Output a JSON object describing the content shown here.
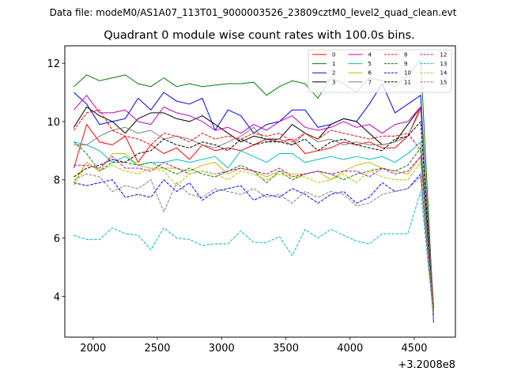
{
  "suptitle": "Data file: modeM0/AS1A07_113T01_9000003526_23809cztM0_level2_quad_clean.evt",
  "chart_data": {
    "type": "line",
    "title": "Quadrant 0 module wise count rates with 100.0s bins.",
    "xlabel": "",
    "ylabel": "",
    "offset_text": "+3.2008e8",
    "xlim": [
      1780,
      4820
    ],
    "ylim": [
      2.6,
      12.6
    ],
    "xticks": [
      2000,
      2500,
      3000,
      3500,
      4000,
      4500
    ],
    "yticks": [
      4,
      6,
      8,
      10,
      12
    ],
    "legend_loc": "upper right",
    "legend_ncol": 4,
    "x": [
      1850,
      1950,
      2050,
      2150,
      2250,
      2350,
      2450,
      2550,
      2650,
      2750,
      2850,
      2950,
      3050,
      3150,
      3250,
      3350,
      3450,
      3550,
      3650,
      3750,
      3850,
      3950,
      4050,
      4150,
      4250,
      4350,
      4450,
      4550,
      4650
    ],
    "series": [
      {
        "name": "0",
        "color": "#ff0000",
        "dash": "solid",
        "values": [
          8.4,
          9.9,
          9.3,
          9.2,
          9.5,
          8.6,
          9.2,
          8.9,
          9.1,
          8.7,
          9.2,
          9.0,
          9.1,
          9.0,
          9.2,
          9.4,
          9.3,
          9.4,
          8.9,
          9.0,
          9.1,
          9.3,
          9.2,
          9.3,
          9.1,
          9.1,
          9.5,
          10.5,
          3.5
        ]
      },
      {
        "name": "1",
        "color": "#008000",
        "dash": "solid",
        "values": [
          11.2,
          11.6,
          11.4,
          11.5,
          11.6,
          11.3,
          11.2,
          11.5,
          11.2,
          11.3,
          11.2,
          11.25,
          11.3,
          11.3,
          11.35,
          10.9,
          11.2,
          11.4,
          11.3,
          10.8,
          11.5,
          11.3,
          11.0,
          11.5,
          11.4,
          11.2,
          11.6,
          12.1,
          3.4
        ]
      },
      {
        "name": "2",
        "color": "#0000ff",
        "dash": "solid",
        "values": [
          11.0,
          10.6,
          9.9,
          10.0,
          10.1,
          10.8,
          10.4,
          11.0,
          10.7,
          10.6,
          10.8,
          9.7,
          10.4,
          10.2,
          9.6,
          9.9,
          10.0,
          10.4,
          10.4,
          9.8,
          9.9,
          10.1,
          10.0,
          10.6,
          11.3,
          10.3,
          10.6,
          10.9,
          3.1
        ]
      },
      {
        "name": "3",
        "color": "#000000",
        "dash": "solid",
        "values": [
          9.8,
          10.5,
          10.2,
          10.0,
          9.6,
          10.1,
          10.3,
          10.3,
          10.1,
          10.0,
          10.2,
          9.9,
          9.6,
          9.3,
          9.5,
          9.4,
          9.4,
          9.9,
          9.6,
          9.4,
          9.9,
          10.1,
          10.0,
          9.6,
          9.2,
          9.3,
          9.9,
          10.5,
          3.6
        ]
      },
      {
        "name": "4",
        "color": "#bf00bf",
        "dash": "solid",
        "values": [
          10.4,
          10.9,
          10.3,
          10.3,
          10.4,
          10.0,
          9.9,
          10.5,
          10.3,
          10.2,
          10.0,
          9.7,
          9.8,
          9.6,
          9.9,
          9.7,
          10.0,
          10.2,
          9.8,
          9.7,
          9.8,
          10.0,
          9.8,
          9.9,
          9.6,
          9.9,
          10.0,
          10.5,
          3.7
        ]
      },
      {
        "name": "5",
        "color": "#00bfbf",
        "dash": "solid",
        "values": [
          9.3,
          9.2,
          9.0,
          8.6,
          8.8,
          8.5,
          8.6,
          8.6,
          8.7,
          8.6,
          8.7,
          8.8,
          8.4,
          9.0,
          8.8,
          8.6,
          8.9,
          8.9,
          8.6,
          8.7,
          8.8,
          8.7,
          8.8,
          8.7,
          8.8,
          8.6,
          8.9,
          9.3,
          3.5
        ]
      },
      {
        "name": "6",
        "color": "#bfbf00",
        "dash": "solid",
        "values": [
          7.9,
          8.6,
          8.3,
          8.9,
          8.9,
          8.5,
          8.4,
          8.4,
          8.4,
          8.3,
          8.5,
          8.6,
          8.2,
          8.4,
          8.3,
          8.1,
          8.3,
          8.2,
          8.2,
          8.3,
          8.0,
          8.3,
          8.5,
          8.6,
          8.4,
          8.3,
          8.2,
          8.8,
          3.4
        ]
      },
      {
        "name": "7",
        "color": "#808080",
        "dash": "solid",
        "values": [
          9.2,
          9.2,
          9.5,
          9.7,
          9.8,
          9.6,
          9.7,
          9.4,
          9.5,
          9.4,
          9.2,
          9.1,
          9.3,
          9.5,
          9.8,
          9.3,
          9.4,
          9.2,
          9.6,
          9.3,
          9.4,
          9.2,
          9.3,
          9.2,
          9.2,
          9.3,
          9.5,
          10.4,
          3.6
        ]
      },
      {
        "name": "8",
        "color": "#ff0000",
        "dash": "dashed",
        "values": [
          9.7,
          10.3,
          10.4,
          9.7,
          9.5,
          9.4,
          9.2,
          9.6,
          9.5,
          9.3,
          9.6,
          9.4,
          9.5,
          9.4,
          9.6,
          9.5,
          9.6,
          9.3,
          9.6,
          9.4,
          9.7,
          9.6,
          9.5,
          9.4,
          9.5,
          9.5,
          9.6,
          9.0,
          3.5
        ]
      },
      {
        "name": "9",
        "color": "#008000",
        "dash": "dashed",
        "values": [
          9.3,
          8.9,
          8.3,
          8.6,
          8.6,
          8.5,
          8.6,
          8.4,
          8.2,
          8.4,
          8.2,
          8.1,
          8.3,
          8.5,
          8.3,
          7.9,
          8.3,
          8.0,
          8.2,
          8.3,
          8.2,
          8.0,
          8.2,
          8.3,
          8.4,
          8.3,
          8.5,
          9.1,
          3.6
        ]
      },
      {
        "name": "10",
        "color": "#0000ff",
        "dash": "dashed",
        "values": [
          7.9,
          7.8,
          7.9,
          8.0,
          7.4,
          7.5,
          7.4,
          8.0,
          7.6,
          7.9,
          7.3,
          7.6,
          7.7,
          7.8,
          7.3,
          7.5,
          7.4,
          7.7,
          7.5,
          7.2,
          7.5,
          7.6,
          7.2,
          7.4,
          7.9,
          7.6,
          7.7,
          8.2,
          3.3
        ]
      },
      {
        "name": "11",
        "color": "#000000",
        "dash": "dashed",
        "values": [
          8.1,
          8.4,
          8.5,
          8.7,
          8.6,
          8.9,
          9.0,
          9.4,
          9.2,
          9.1,
          9.3,
          9.2,
          9.0,
          9.4,
          9.2,
          9.3,
          9.3,
          9.2,
          9.4,
          9.0,
          9.3,
          9.4,
          9.2,
          9.1,
          9.0,
          9.4,
          9.5,
          10.0,
          3.3
        ]
      },
      {
        "name": "12",
        "color": "#bf00bf",
        "dash": "dashed",
        "values": [
          8.5,
          8.5,
          8.4,
          8.8,
          8.4,
          8.4,
          8.3,
          8.6,
          8.4,
          8.2,
          8.3,
          8.2,
          8.3,
          8.4,
          8.3,
          8.2,
          8.4,
          8.1,
          8.2,
          8.3,
          8.2,
          8.3,
          8.3,
          8.1,
          8.4,
          8.2,
          8.3,
          8.8,
          3.5
        ]
      },
      {
        "name": "13",
        "color": "#00bfbf",
        "dash": "dashed",
        "values": [
          6.1,
          5.95,
          5.95,
          6.35,
          6.15,
          6.1,
          5.6,
          6.35,
          6.0,
          5.95,
          5.75,
          5.8,
          5.8,
          6.25,
          5.85,
          5.85,
          6.05,
          5.4,
          6.3,
          6.0,
          6.3,
          6.1,
          5.9,
          5.8,
          6.15,
          6.15,
          6.15,
          7.6,
          3.3
        ]
      },
      {
        "name": "14",
        "color": "#bfbf00",
        "dash": "dashed",
        "values": [
          7.8,
          8.6,
          8.3,
          8.5,
          8.3,
          8.2,
          8.4,
          8.3,
          7.8,
          8.2,
          8.3,
          8.2,
          8.0,
          8.3,
          8.2,
          8.0,
          8.2,
          8.1,
          8.1,
          7.9,
          8.0,
          8.2,
          7.9,
          8.3,
          8.1,
          8.0,
          8.0,
          8.6,
          3.4
        ]
      },
      {
        "name": "15",
        "color": "#808080",
        "dash": "dashed",
        "values": [
          8.0,
          8.2,
          8.1,
          7.6,
          7.8,
          7.7,
          8.0,
          6.9,
          7.9,
          7.5,
          7.4,
          7.7,
          7.6,
          7.5,
          7.7,
          7.4,
          7.5,
          7.2,
          7.6,
          7.4,
          7.6,
          7.5,
          7.1,
          7.2,
          7.5,
          7.6,
          7.7,
          8.1,
          3.2
        ]
      }
    ]
  }
}
